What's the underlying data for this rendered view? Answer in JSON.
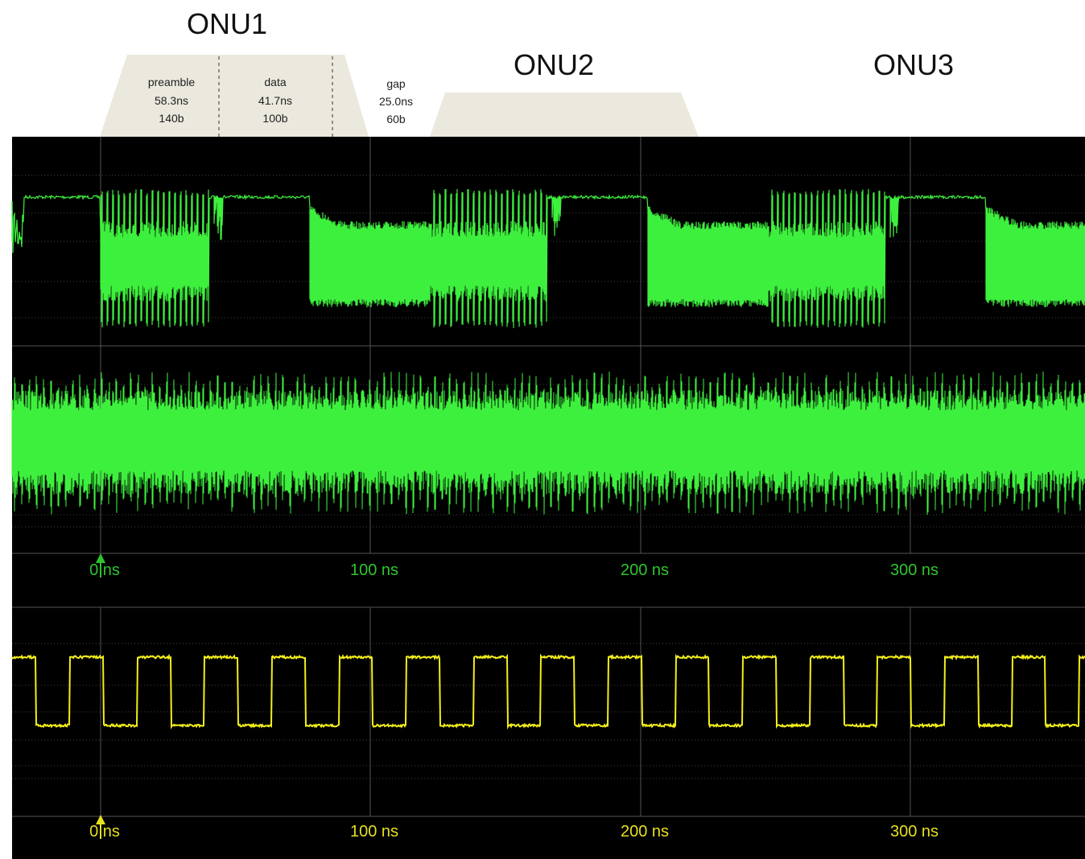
{
  "onus": [
    "ONU1",
    "ONU2",
    "ONU3"
  ],
  "segments": [
    {
      "name": "preamble",
      "duration": "58.3ns",
      "bits": "140b"
    },
    {
      "name": "data",
      "duration": "41.7ns",
      "bits": "100b"
    },
    {
      "name": "gap",
      "duration": "25.0ns",
      "bits": "60b"
    }
  ],
  "panels": [
    {
      "time_ticks": [
        "0 ns",
        "100 ns",
        "200 ns",
        "300 ns"
      ]
    },
    {
      "time_ticks": [
        "0 ns",
        "100 ns",
        "200 ns",
        "300 ns"
      ]
    }
  ]
}
